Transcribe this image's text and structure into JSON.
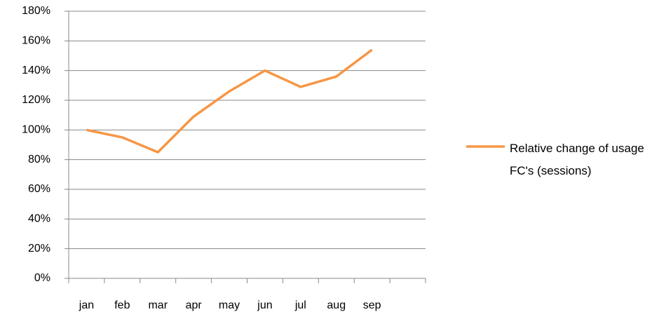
{
  "chart_data": {
    "type": "line",
    "categories": [
      "jan",
      "feb",
      "mar",
      "apr",
      "may",
      "jun",
      "jul",
      "aug",
      "sep",
      null
    ],
    "series": [
      {
        "name": "Relative change of usage FC's (sessions)",
        "color": "#f79646",
        "values": [
          100,
          95,
          85,
          109,
          126,
          140,
          129,
          136,
          154,
          null
        ]
      }
    ],
    "ylim": [
      0,
      180
    ],
    "yticks": [
      {
        "value": 0,
        "label": "0%"
      },
      {
        "value": 20,
        "label": "20%"
      },
      {
        "value": 40,
        "label": "40%"
      },
      {
        "value": 60,
        "label": "60%"
      },
      {
        "value": 80,
        "label": "80%"
      },
      {
        "value": 100,
        "label": "100%"
      },
      {
        "value": 120,
        "label": "120%"
      },
      {
        "value": 140,
        "label": "140%"
      },
      {
        "value": 160,
        "label": "160%"
      },
      {
        "value": 180,
        "label": "180%"
      }
    ],
    "grid": true,
    "legend": "right"
  }
}
